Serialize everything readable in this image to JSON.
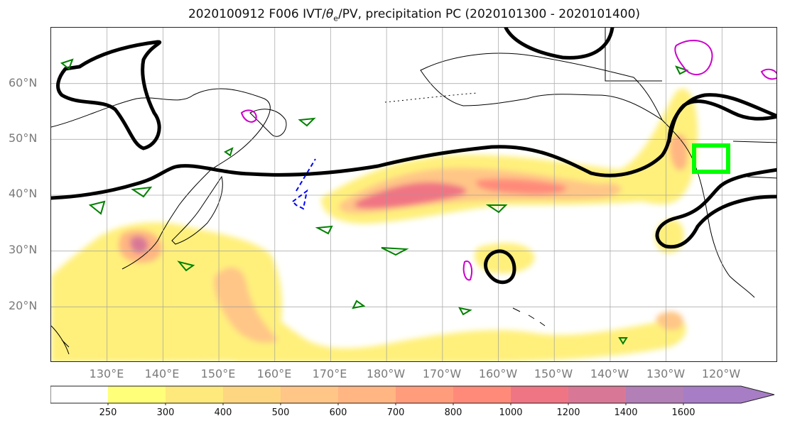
{
  "chart_data": {
    "type": "heatmap",
    "title": "2020100912 F006 IVT/θe/PV, precipitation PC (2020101300 - 2020101400)",
    "projection": "map",
    "lat_labels": [
      "60°N",
      "50°N",
      "40°N",
      "30°N",
      "20°N"
    ],
    "lat_values": [
      60,
      50,
      40,
      30,
      20
    ],
    "lon_labels": [
      "130°E",
      "140°E",
      "150°E",
      "160°E",
      "170°E",
      "180°W",
      "170°W",
      "160°W",
      "150°W",
      "140°W",
      "130°W",
      "120°W"
    ],
    "lon_values": [
      130,
      140,
      150,
      160,
      170,
      180,
      190,
      200,
      210,
      220,
      230,
      240
    ],
    "extent": {
      "lon_min": 120,
      "lon_max": 250,
      "lat_min": 10,
      "lat_max": 70
    },
    "grid": true,
    "colorbar": {
      "levels": [
        "250",
        "300",
        "400",
        "500",
        "600",
        "700",
        "800",
        "1000",
        "1200",
        "1400",
        "1600"
      ],
      "colors": [
        "#ffffff",
        "#ffff7a",
        "#fee97c",
        "#fed681",
        "#ffc687",
        "#ffb682",
        "#ff9c7c",
        "#ff8a7a",
        "#f07584",
        "#d97896",
        "#b27fb6",
        "#a77dc6"
      ],
      "extend": "max"
    },
    "highlight_box_color": "#00ff00",
    "contour_colors": {
      "ivt": "#000000",
      "pv": "#008000",
      "theta_neg": "#0000ff",
      "theta_pos": "#cc00cc"
    }
  }
}
